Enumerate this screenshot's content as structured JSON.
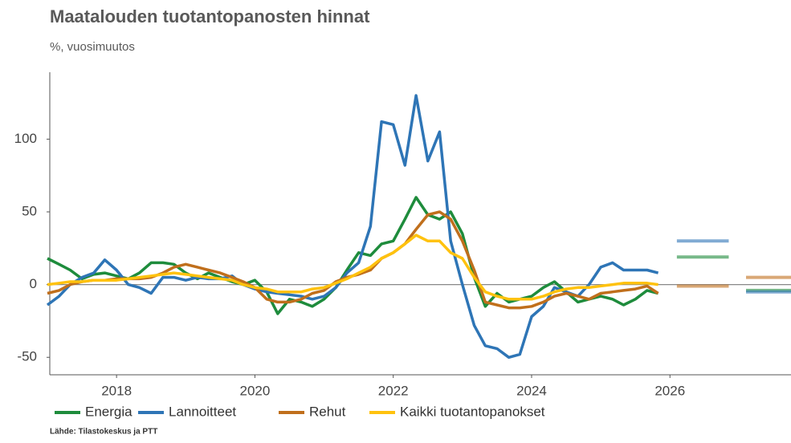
{
  "chart_data": {
    "type": "line",
    "title": "Maatalouden tuotantopanosten hinnat",
    "subtitle": "%, vuosimuutos",
    "source": "Lähde: Tilastokeskus ja PTT",
    "x": [
      2017,
      2017.17,
      2017.33,
      2017.5,
      2017.67,
      2017.83,
      2018,
      2018.17,
      2018.33,
      2018.5,
      2018.67,
      2018.83,
      2019,
      2019.17,
      2019.33,
      2019.5,
      2019.67,
      2019.83,
      2020,
      2020.17,
      2020.33,
      2020.5,
      2020.67,
      2020.83,
      2021,
      2021.17,
      2021.33,
      2021.5,
      2021.67,
      2021.83,
      2022,
      2022.17,
      2022.33,
      2022.5,
      2022.67,
      2022.83,
      2023,
      2023.17,
      2023.33,
      2023.5,
      2023.67,
      2023.83,
      2024,
      2024.17,
      2024.33,
      2024.5,
      2024.67,
      2024.83,
      2025,
      2025.17,
      2025.33,
      2025.5,
      2025.67,
      2025.83
    ],
    "series": [
      {
        "name": "Energia",
        "color": "#1e8c3c",
        "values": [
          18,
          14,
          10,
          4,
          7,
          8,
          6,
          4,
          8,
          15,
          15,
          14,
          8,
          4,
          8,
          5,
          2,
          0,
          3,
          -5,
          -20,
          -10,
          -12,
          -15,
          -10,
          -2,
          10,
          22,
          20,
          28,
          30,
          45,
          60,
          48,
          45,
          50,
          35,
          5,
          -15,
          -6,
          -12,
          -10,
          -8,
          -2,
          2,
          -5,
          -12,
          -10,
          -8,
          -10,
          -14,
          -10,
          -4,
          -6
        ],
        "forecast": [
          19,
          -4
        ]
      },
      {
        "name": "Lannoitteet",
        "color": "#2e75b6",
        "values": [
          -14,
          -8,
          0,
          5,
          8,
          17,
          10,
          0,
          -2,
          -6,
          5,
          5,
          3,
          5,
          4,
          4,
          6,
          0,
          -3,
          -5,
          -6,
          -7,
          -8,
          -10,
          -8,
          -2,
          8,
          15,
          40,
          112,
          110,
          82,
          130,
          85,
          105,
          30,
          0,
          -28,
          -42,
          -44,
          -50,
          -48,
          -22,
          -15,
          -2,
          -5,
          -8,
          0,
          12,
          15,
          10,
          10,
          10,
          8
        ],
        "forecast": [
          30,
          -5
        ]
      },
      {
        "name": "Rehut",
        "color": "#c06f1c",
        "values": [
          -6,
          -4,
          0,
          2,
          3,
          3,
          4,
          4,
          4,
          5,
          8,
          12,
          14,
          12,
          10,
          8,
          5,
          2,
          -2,
          -10,
          -12,
          -12,
          -10,
          -6,
          -4,
          2,
          5,
          7,
          10,
          18,
          22,
          28,
          38,
          48,
          50,
          45,
          30,
          10,
          -12,
          -14,
          -16,
          -16,
          -15,
          -12,
          -8,
          -6,
          -8,
          -10,
          -6,
          -5,
          -4,
          -3,
          -1,
          -6
        ],
        "forecast": [
          -1,
          5
        ]
      },
      {
        "name": "Kaikki tuotantopanokset",
        "color": "#ffc20e",
        "values": [
          0,
          1,
          2,
          2,
          3,
          3,
          3,
          4,
          5,
          6,
          7,
          8,
          7,
          6,
          5,
          4,
          3,
          0,
          -2,
          -3,
          -5,
          -5,
          -5,
          -3,
          -2,
          1,
          4,
          8,
          12,
          18,
          22,
          28,
          34,
          30,
          30,
          22,
          18,
          5,
          -5,
          -8,
          -10,
          -10,
          -10,
          -8,
          -5,
          -3,
          -2,
          -2,
          -1,
          0,
          1,
          1,
          1,
          0
        ]
      }
    ],
    "forecast_years": [
      2026,
      2027
    ],
    "xlim": [
      2017,
      2027.75
    ],
    "xticks": [
      2018,
      2020,
      2022,
      2024,
      2026
    ],
    "ylim": [
      -62,
      146
    ],
    "yticks": [
      -50,
      0,
      50,
      100
    ]
  }
}
